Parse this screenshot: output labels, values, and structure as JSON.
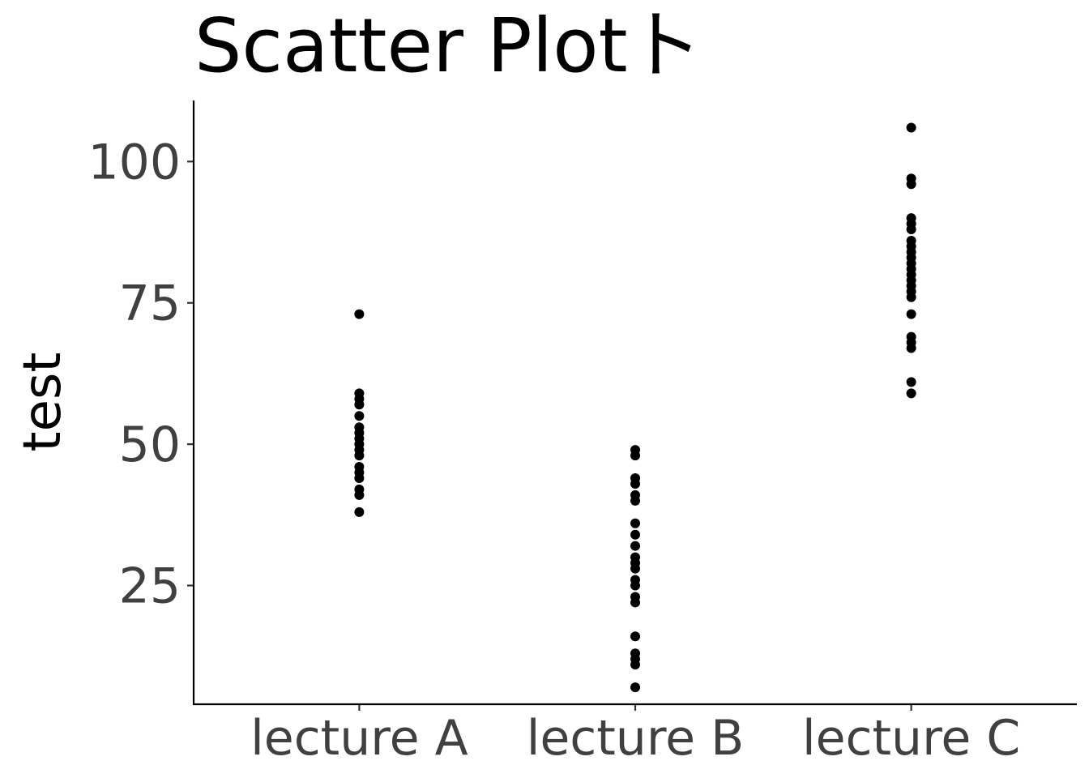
{
  "chart_data": {
    "type": "scatter",
    "title": "Scatter Plotト",
    "xlabel": "",
    "ylabel": "test",
    "categories": [
      "lecture A",
      "lecture B",
      "lecture C"
    ],
    "yticks": [
      25,
      50,
      75,
      100
    ],
    "ylim": [
      4,
      110.8
    ],
    "grid": false,
    "legend": "none",
    "point_color": "#000000",
    "points": [
      {
        "x": "lecture A",
        "y": 73
      },
      {
        "x": "lecture A",
        "y": 59
      },
      {
        "x": "lecture A",
        "y": 58
      },
      {
        "x": "lecture A",
        "y": 57
      },
      {
        "x": "lecture A",
        "y": 55
      },
      {
        "x": "lecture A",
        "y": 53
      },
      {
        "x": "lecture A",
        "y": 52
      },
      {
        "x": "lecture A",
        "y": 51
      },
      {
        "x": "lecture A",
        "y": 50
      },
      {
        "x": "lecture A",
        "y": 49
      },
      {
        "x": "lecture A",
        "y": 48
      },
      {
        "x": "lecture A",
        "y": 46
      },
      {
        "x": "lecture A",
        "y": 45
      },
      {
        "x": "lecture A",
        "y": 44
      },
      {
        "x": "lecture A",
        "y": 42
      },
      {
        "x": "lecture A",
        "y": 41
      },
      {
        "x": "lecture A",
        "y": 38
      },
      {
        "x": "lecture B",
        "y": 49
      },
      {
        "x": "lecture B",
        "y": 48
      },
      {
        "x": "lecture B",
        "y": 44
      },
      {
        "x": "lecture B",
        "y": 43
      },
      {
        "x": "lecture B",
        "y": 41
      },
      {
        "x": "lecture B",
        "y": 40
      },
      {
        "x": "lecture B",
        "y": 36
      },
      {
        "x": "lecture B",
        "y": 34
      },
      {
        "x": "lecture B",
        "y": 32
      },
      {
        "x": "lecture B",
        "y": 30
      },
      {
        "x": "lecture B",
        "y": 29
      },
      {
        "x": "lecture B",
        "y": 28
      },
      {
        "x": "lecture B",
        "y": 26
      },
      {
        "x": "lecture B",
        "y": 25
      },
      {
        "x": "lecture B",
        "y": 23
      },
      {
        "x": "lecture B",
        "y": 22
      },
      {
        "x": "lecture B",
        "y": 16
      },
      {
        "x": "lecture B",
        "y": 13
      },
      {
        "x": "lecture B",
        "y": 12
      },
      {
        "x": "lecture B",
        "y": 11
      },
      {
        "x": "lecture B",
        "y": 7
      },
      {
        "x": "lecture C",
        "y": 106
      },
      {
        "x": "lecture C",
        "y": 97
      },
      {
        "x": "lecture C",
        "y": 96
      },
      {
        "x": "lecture C",
        "y": 90
      },
      {
        "x": "lecture C",
        "y": 89
      },
      {
        "x": "lecture C",
        "y": 88
      },
      {
        "x": "lecture C",
        "y": 86
      },
      {
        "x": "lecture C",
        "y": 85
      },
      {
        "x": "lecture C",
        "y": 84
      },
      {
        "x": "lecture C",
        "y": 83
      },
      {
        "x": "lecture C",
        "y": 82
      },
      {
        "x": "lecture C",
        "y": 81
      },
      {
        "x": "lecture C",
        "y": 80
      },
      {
        "x": "lecture C",
        "y": 79
      },
      {
        "x": "lecture C",
        "y": 78
      },
      {
        "x": "lecture C",
        "y": 77
      },
      {
        "x": "lecture C",
        "y": 76
      },
      {
        "x": "lecture C",
        "y": 73
      },
      {
        "x": "lecture C",
        "y": 69
      },
      {
        "x": "lecture C",
        "y": 68
      },
      {
        "x": "lecture C",
        "y": 67
      },
      {
        "x": "lecture C",
        "y": 61
      },
      {
        "x": "lecture C",
        "y": 59
      }
    ]
  }
}
